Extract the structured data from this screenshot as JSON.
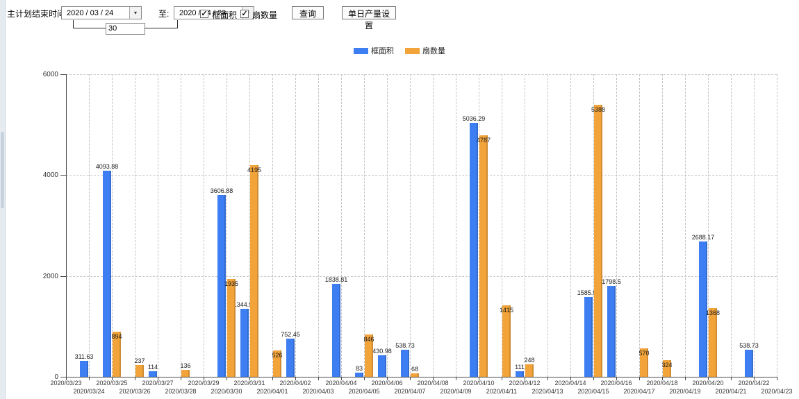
{
  "icons": {
    "dropdown_arrow": "▾",
    "checkmark": "✓"
  },
  "toolbar": {
    "label_main": "主计划结束时间:",
    "date_from": "2020 / 03 / 24",
    "to_label": "至:",
    "date_to": "2020 / 04 / 23",
    "interval_value": "30",
    "checkbox_area_label": "框面积",
    "checkbox_area_checked": true,
    "checkbox_fan_label": "扇数量",
    "checkbox_fan_checked": true,
    "query_label": "查询",
    "daily_label": "单日产量设置"
  },
  "chart_data": {
    "type": "bar",
    "title": "",
    "xlabel": "",
    "ylabel": "",
    "ylim": [
      0,
      6000
    ],
    "yticks": [
      0,
      2000,
      4000,
      6000
    ],
    "grid": true,
    "legend_position": "top",
    "categories": [
      "2020/03/23",
      "2020/03/24",
      "2020/03/25",
      "2020/03/26",
      "2020/03/27",
      "2020/03/28",
      "2020/03/29",
      "2020/03/30",
      "2020/03/31",
      "2020/04/01",
      "2020/04/02",
      "2020/04/03",
      "2020/04/04",
      "2020/04/05",
      "2020/04/06",
      "2020/04/07",
      "2020/04/08",
      "2020/04/09",
      "2020/04/10",
      "2020/04/11",
      "2020/04/12",
      "2020/04/13",
      "2020/04/14",
      "2020/04/15",
      "2020/04/16",
      "2020/04/17",
      "2020/04/18",
      "2020/04/19",
      "2020/04/20",
      "2020/04/21",
      "2020/04/22",
      "2020/04/23"
    ],
    "series": [
      {
        "name": "框面积",
        "color": "#3d7ef2",
        "values": [
          null,
          311.63,
          4093.88,
          null,
          114,
          null,
          null,
          3606.88,
          1344.95,
          null,
          752.45,
          null,
          1838.81,
          83,
          430.98,
          538.73,
          null,
          null,
          5036.29,
          null,
          111,
          null,
          null,
          1585.96,
          1798.5,
          null,
          null,
          null,
          2688.17,
          null,
          538.73,
          null
        ]
      },
      {
        "name": "扇数量",
        "color": "#f2a339",
        "values": [
          null,
          null,
          894,
          237,
          null,
          136,
          null,
          1935,
          4195,
          526,
          null,
          null,
          null,
          846,
          null,
          68,
          null,
          null,
          4787,
          1415,
          248,
          null,
          null,
          5388,
          null,
          570,
          324,
          null,
          1368,
          null,
          null,
          null
        ]
      }
    ]
  }
}
